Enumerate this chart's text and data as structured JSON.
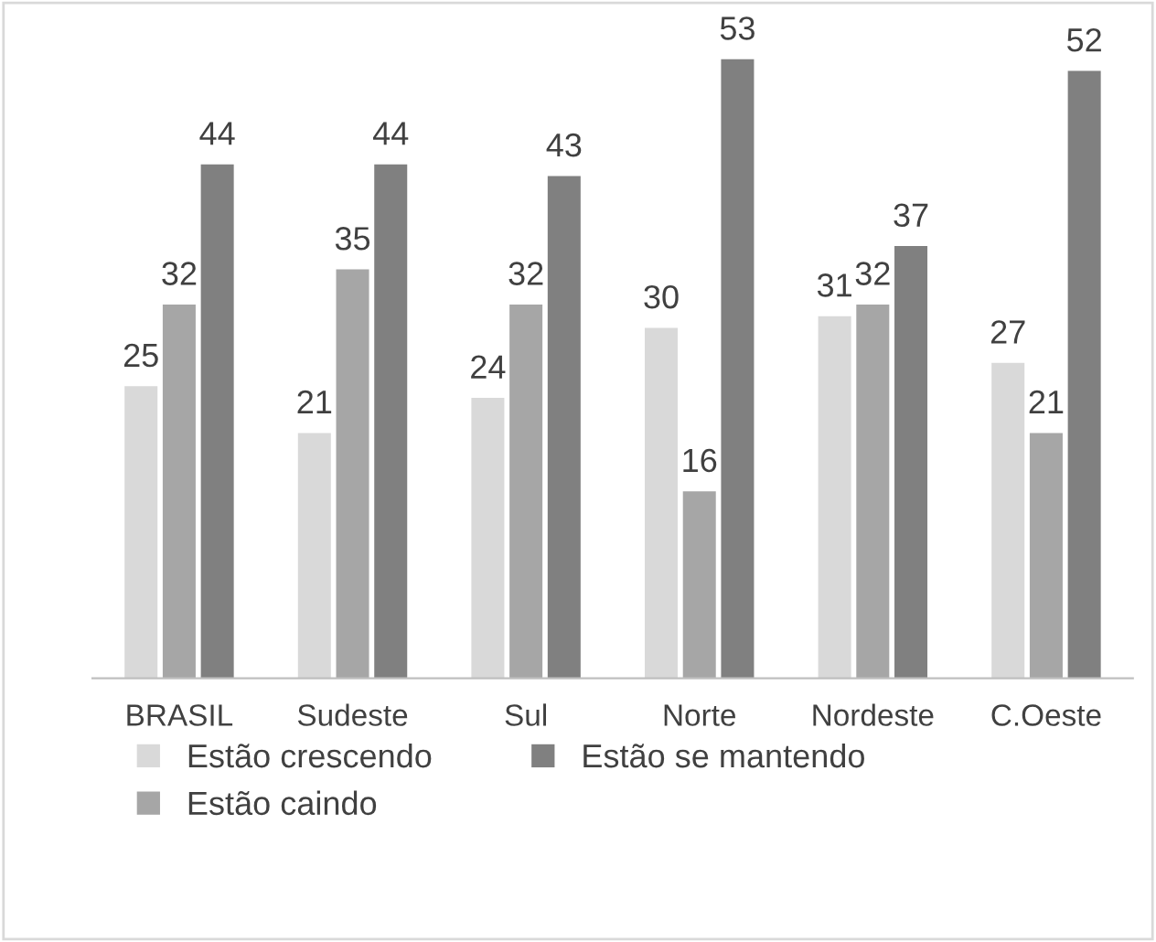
{
  "chart_data": {
    "type": "bar",
    "categories": [
      "BRASIL",
      "Sudeste",
      "Sul",
      "Norte",
      "Nordeste",
      "C.Oeste"
    ],
    "series": [
      {
        "name": "Estão crescendo",
        "color": "#d9d9d9",
        "values": [
          25,
          21,
          24,
          30,
          31,
          27
        ]
      },
      {
        "name": "Estão caindo",
        "color": "#a6a6a6",
        "values": [
          32,
          35,
          32,
          16,
          32,
          21
        ]
      },
      {
        "name": "Estão se mantendo",
        "color": "#808080",
        "values": [
          44,
          44,
          43,
          53,
          37,
          52
        ]
      }
    ],
    "data_labels": true,
    "legend": "bottom",
    "grid": false,
    "tick_labels": "x"
  }
}
